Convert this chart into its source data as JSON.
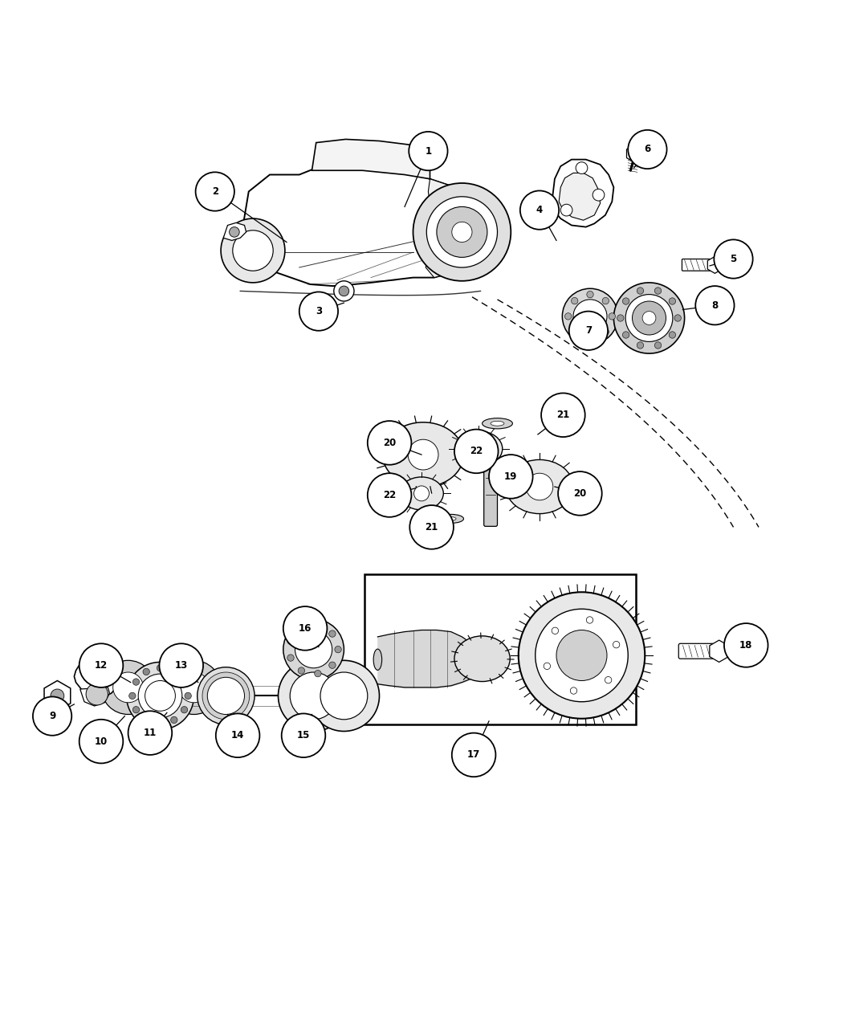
{
  "bg_color": "#ffffff",
  "lc": "#000000",
  "figsize": [
    10.5,
    12.75
  ],
  "dpi": 100,
  "callouts": {
    "1": [
      0.508,
      0.928,
      0.48,
      0.862
    ],
    "2": [
      0.255,
      0.88,
      0.34,
      0.82
    ],
    "3": [
      0.378,
      0.738,
      0.408,
      0.748
    ],
    "4": [
      0.64,
      0.858,
      0.66,
      0.822
    ],
    "5": [
      0.87,
      0.8,
      0.842,
      0.792
    ],
    "6": [
      0.768,
      0.93,
      0.752,
      0.908
    ],
    "7": [
      0.698,
      0.715,
      0.7,
      0.73
    ],
    "8": [
      0.848,
      0.745,
      0.81,
      0.74
    ],
    "9": [
      0.062,
      0.258,
      0.088,
      0.272
    ],
    "10": [
      0.12,
      0.228,
      0.148,
      0.258
    ],
    "11": [
      0.178,
      0.238,
      0.198,
      0.262
    ],
    "12": [
      0.12,
      0.318,
      0.155,
      0.298
    ],
    "13": [
      0.215,
      0.318,
      0.235,
      0.298
    ],
    "14": [
      0.282,
      0.235,
      0.27,
      0.26
    ],
    "15": [
      0.36,
      0.235,
      0.37,
      0.26
    ],
    "16": [
      0.362,
      0.362,
      0.378,
      0.34
    ],
    "17": [
      0.562,
      0.212,
      0.58,
      0.252
    ],
    "18": [
      0.885,
      0.342,
      0.862,
      0.332
    ],
    "19": [
      0.606,
      0.542,
      0.585,
      0.548
    ],
    "20a": [
      0.462,
      0.582,
      0.5,
      0.568
    ],
    "20b": [
      0.688,
      0.522,
      0.658,
      0.53
    ],
    "21a": [
      0.668,
      0.615,
      0.638,
      0.592
    ],
    "21b": [
      0.512,
      0.482,
      0.528,
      0.498
    ],
    "22a": [
      0.565,
      0.572,
      0.56,
      0.56
    ],
    "22b": [
      0.462,
      0.52,
      0.492,
      0.528
    ]
  },
  "callout_labels": {
    "1": "1",
    "2": "2",
    "3": "3",
    "4": "4",
    "5": "5",
    "6": "6",
    "7": "7",
    "8": "8",
    "9": "9",
    "10": "10",
    "11": "11",
    "12": "12",
    "13": "13",
    "14": "14",
    "15": "15",
    "16": "16",
    "17": "17",
    "18": "18",
    "19": "19",
    "20a": "20",
    "20b": "20",
    "21a": "21",
    "21b": "21",
    "22a": "22",
    "22b": "22"
  }
}
